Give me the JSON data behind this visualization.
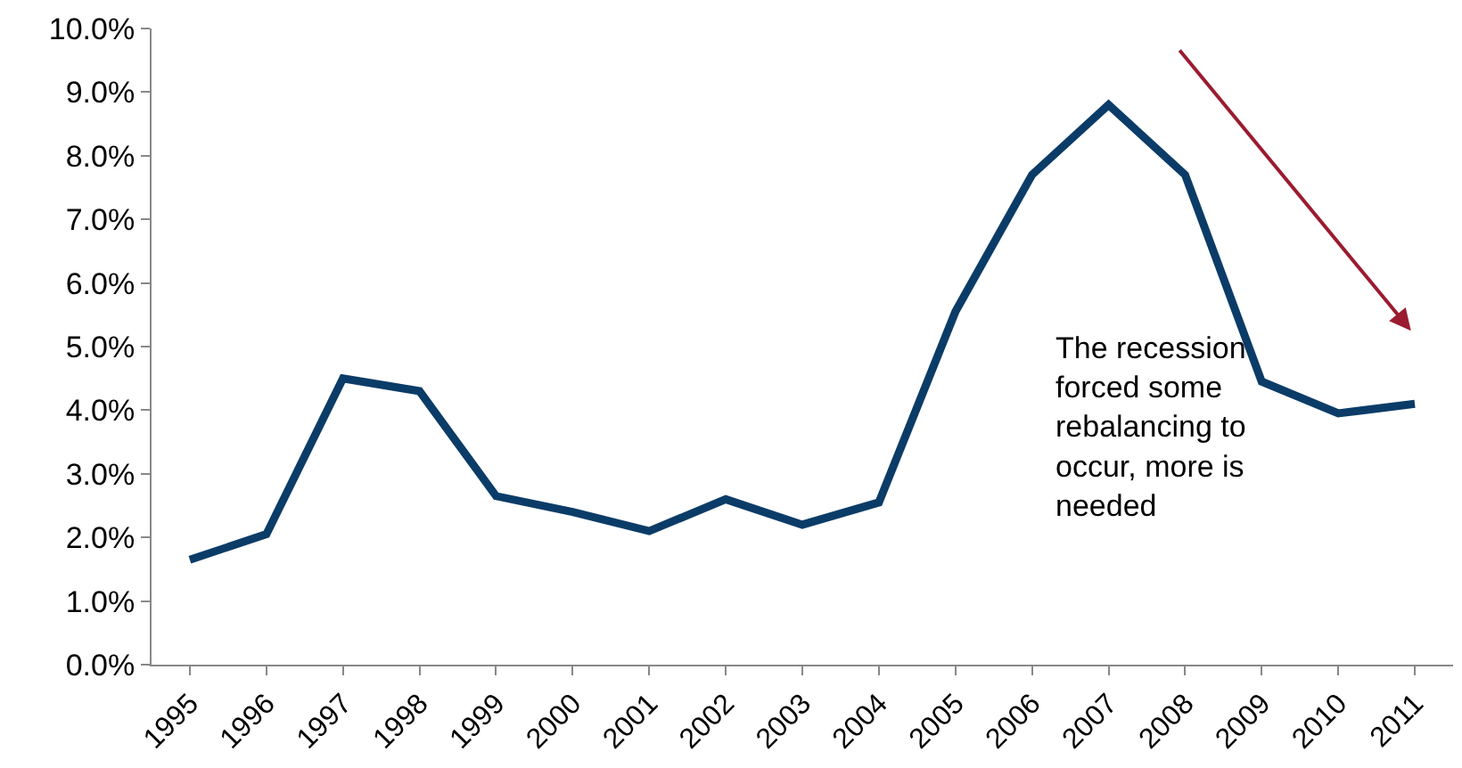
{
  "chart_data": {
    "type": "line",
    "categories": [
      "1995",
      "1996",
      "1997",
      "1998",
      "1999",
      "2000",
      "2001",
      "2002",
      "2003",
      "2004",
      "2005",
      "2006",
      "2007",
      "2008",
      "2009",
      "2010",
      "2011"
    ],
    "series": [
      {
        "color": "#0b3c68",
        "values": [
          1.65,
          2.05,
          4.5,
          4.3,
          2.65,
          2.4,
          2.1,
          2.6,
          2.2,
          2.55,
          5.55,
          7.7,
          8.8,
          7.7,
          4.45,
          3.95,
          4.1
        ]
      }
    ],
    "ylim": [
      0,
      10
    ],
    "yticks": [
      {
        "value": 0,
        "label": "0.0%"
      },
      {
        "value": 1,
        "label": "1.0%"
      },
      {
        "value": 2,
        "label": "2.0%"
      },
      {
        "value": 3,
        "label": "3.0%"
      },
      {
        "value": 4,
        "label": "4.0%"
      },
      {
        "value": 5,
        "label": "5.0%"
      },
      {
        "value": 6,
        "label": "6.0%"
      },
      {
        "value": 7,
        "label": "7.0%"
      },
      {
        "value": 8,
        "label": "8.0%"
      },
      {
        "value": 9,
        "label": "9.0%"
      },
      {
        "value": 10,
        "label": "10.0%"
      }
    ],
    "annotations": [
      "The recession forced some rebalancing to occur, more is needed"
    ],
    "marker": "none",
    "line_style": "solid"
  }
}
